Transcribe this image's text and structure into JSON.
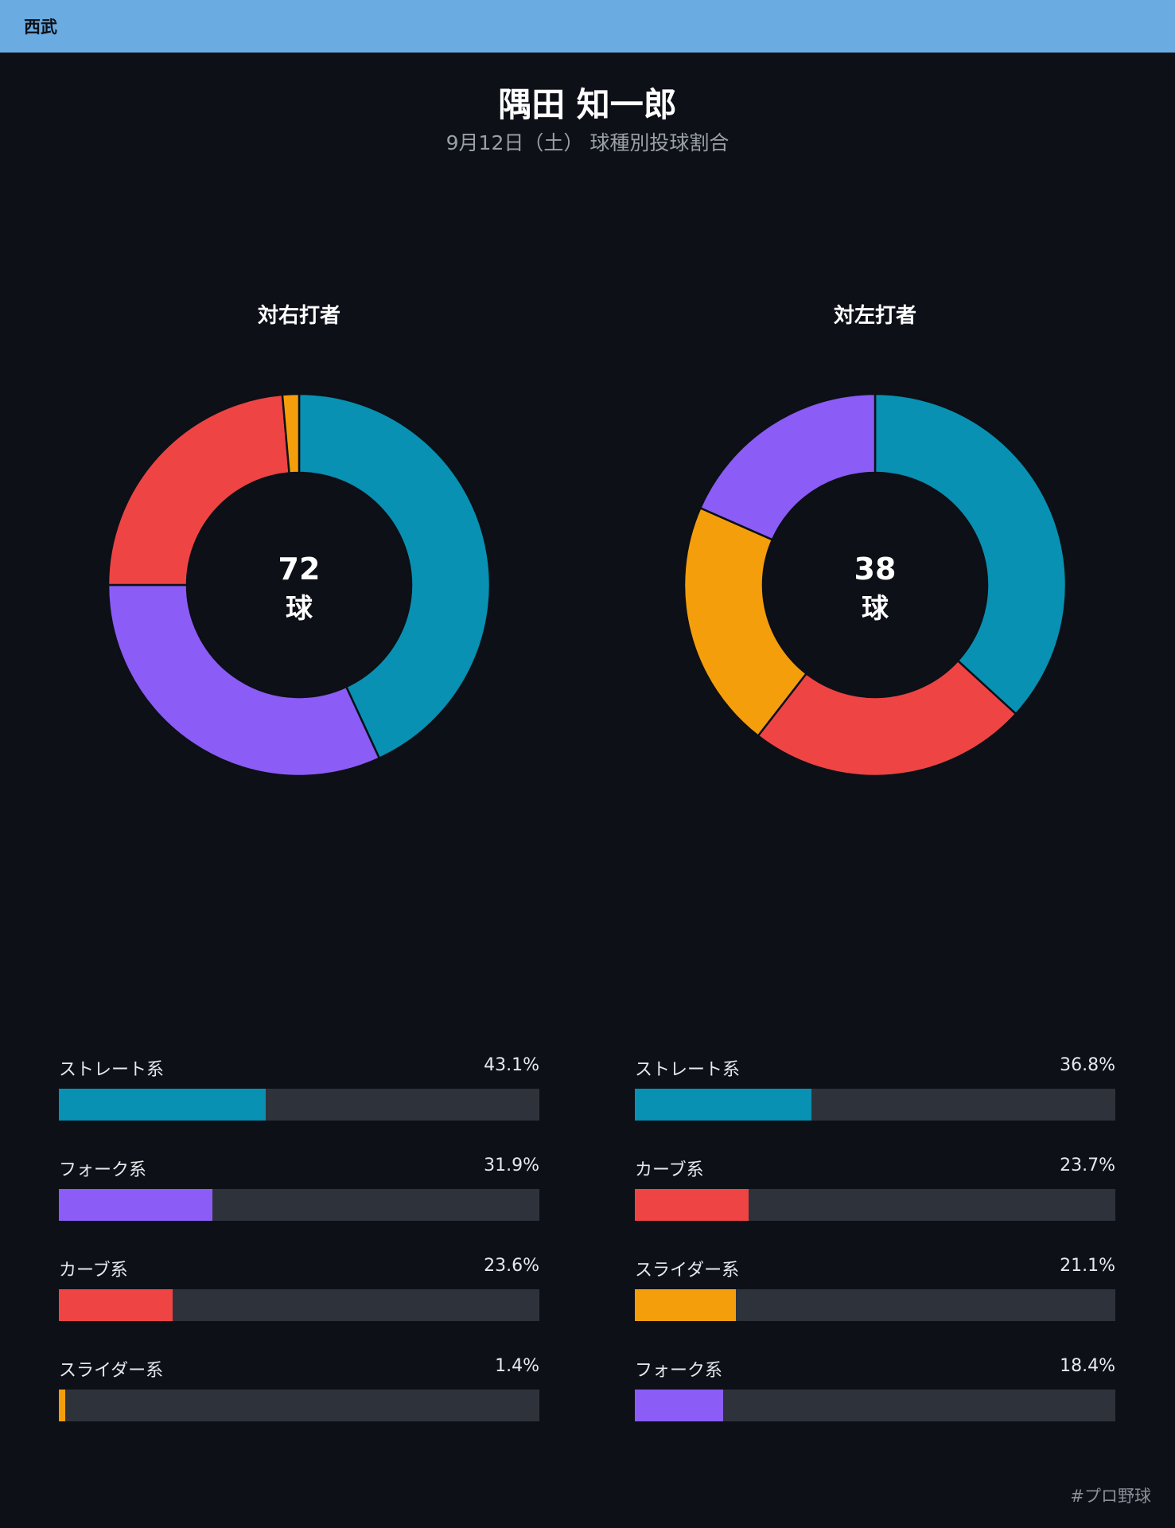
{
  "header": {
    "team": "西武",
    "team_color": "#6aabe2"
  },
  "title": {
    "player": "隅田 知一郎",
    "subtitle": "9月12日（土） 球種別投球割合"
  },
  "unit": "球",
  "footer": {
    "hashtag": "#プロ野球"
  },
  "colors": {
    "background": "#0d1017",
    "track": "#2e333b"
  },
  "chart_data": [
    {
      "type": "pie",
      "title": "対右打者",
      "total": "72",
      "slices": [
        {
          "label": "ストレート系",
          "value": 43.1,
          "pct": "43.1%",
          "color": "#0891b2"
        },
        {
          "label": "フォーク系",
          "value": 31.9,
          "pct": "31.9%",
          "color": "#8b5cf6"
        },
        {
          "label": "カーブ系",
          "value": 23.6,
          "pct": "23.6%",
          "color": "#ef4444"
        },
        {
          "label": "スライダー系",
          "value": 1.4,
          "pct": "1.4%",
          "color": "#f59e0b"
        }
      ]
    },
    {
      "type": "pie",
      "title": "対左打者",
      "total": "38",
      "slices": [
        {
          "label": "ストレート系",
          "value": 36.8,
          "pct": "36.8%",
          "color": "#0891b2"
        },
        {
          "label": "カーブ系",
          "value": 23.7,
          "pct": "23.7%",
          "color": "#ef4444"
        },
        {
          "label": "スライダー系",
          "value": 21.1,
          "pct": "21.1%",
          "color": "#f59e0b"
        },
        {
          "label": "フォーク系",
          "value": 18.4,
          "pct": "18.4%",
          "color": "#8b5cf6"
        }
      ]
    }
  ]
}
